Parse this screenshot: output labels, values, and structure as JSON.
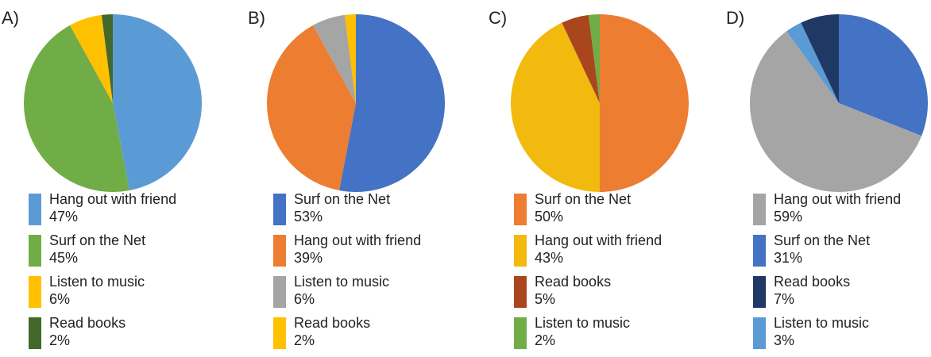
{
  "chart_data": [
    {
      "type": "pie",
      "panel_label": "A)",
      "slices": [
        {
          "name": "Hang out with friend",
          "value": 47,
          "label": "47%",
          "color": "#5b9bd5"
        },
        {
          "name": "Surf on the Net",
          "value": 45,
          "label": "45%",
          "color": "#70ad47"
        },
        {
          "name": "Listen to music",
          "value": 6,
          "label": "6%",
          "color": "#ffc000"
        },
        {
          "name": "Read books",
          "value": 2,
          "label": "2%",
          "color": "#43682b"
        }
      ],
      "legend_position": "bottom"
    },
    {
      "type": "pie",
      "panel_label": "B)",
      "slices": [
        {
          "name": "Surf on the Net",
          "value": 53,
          "label": "53%",
          "color": "#4472c4"
        },
        {
          "name": "Hang out with friend",
          "value": 39,
          "label": "39%",
          "color": "#ed7d31"
        },
        {
          "name": "Listen to music",
          "value": 6,
          "label": "6%",
          "color": "#a5a5a5"
        },
        {
          "name": "Read books",
          "value": 2,
          "label": "2%",
          "color": "#ffc000"
        }
      ],
      "legend_position": "bottom"
    },
    {
      "type": "pie",
      "panel_label": "C)",
      "slices": [
        {
          "name": "Surf on the Net",
          "value": 50,
          "label": "50%",
          "color": "#ed7d31"
        },
        {
          "name": "Hang out with friend",
          "value": 43,
          "label": "43%",
          "color": "#f2b90f"
        },
        {
          "name": "Read books",
          "value": 5,
          "label": "5%",
          "color": "#a9461d"
        },
        {
          "name": "Listen to music",
          "value": 2,
          "label": "2%",
          "color": "#70ad47"
        }
      ],
      "legend_position": "bottom"
    },
    {
      "type": "pie",
      "panel_label": "D)",
      "slices": [
        {
          "name": "Surf on the Net",
          "value": 31,
          "label": "31%",
          "color": "#4472c4"
        },
        {
          "name": "Hang out with friend",
          "value": 59,
          "label": "59%",
          "color": "#a5a5a5"
        },
        {
          "name": "Listen to music",
          "value": 3,
          "label": "3%",
          "color": "#5b9bd5"
        },
        {
          "name": "Read books",
          "value": 7,
          "label": "7%",
          "color": "#203864"
        }
      ],
      "legend_order": [
        "Hang out with friend",
        "Surf on the Net",
        "Read books",
        "Listen to music"
      ],
      "legend_position": "bottom"
    }
  ]
}
